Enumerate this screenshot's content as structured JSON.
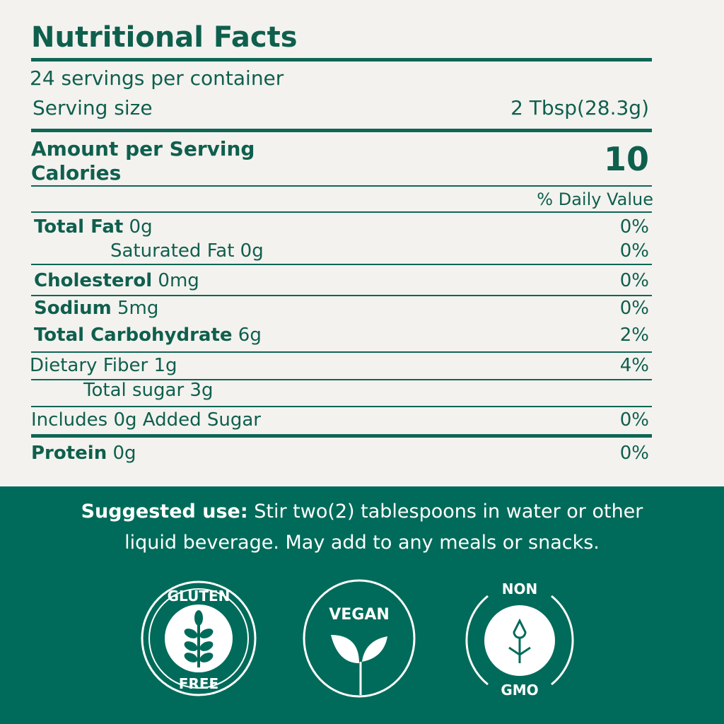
{
  "title": "Nutritional Facts",
  "servings": "24 servings per container",
  "serving_size_label": "Serving size",
  "serving_size_value": "2 Tbsp(28.3g)",
  "amount_per_serving": "Amount per Serving",
  "calories_label": "Calories",
  "calories_value": "10",
  "dv_header": "% Daily Value",
  "rows": [
    {
      "bold": "Total Fat",
      "rest": " 0g",
      "dv": "0%"
    },
    {
      "bold": "",
      "rest": "Saturated Fat 0g",
      "dv": "0%"
    },
    {
      "bold": "Cholesterol",
      "rest": " 0mg",
      "dv": "0%"
    },
    {
      "bold": "Sodium",
      "rest": " 5mg",
      "dv": "0%"
    },
    {
      "bold": "Total Carbohydrate",
      "rest": " 6g",
      "dv": "2%"
    },
    {
      "bold": "",
      "rest": "Dietary Fiber 1g",
      "dv": "4%"
    },
    {
      "bold": "",
      "rest": "Total sugar 3g",
      "dv": ""
    },
    {
      "bold": "",
      "rest": "Includes 0g Added Sugar",
      "dv": "0%"
    },
    {
      "bold": "Protein",
      "rest": " 0g",
      "dv": "0%"
    }
  ],
  "suggested": {
    "label": "Suggested use:",
    "text": " Stir two(2) tablespoons in water or other",
    "line2": "liquid beverage. May add to any meals or snacks."
  },
  "badges": {
    "gluten_top": "GLUTEN",
    "gluten_bottom": "FREE",
    "vegan": "VEGAN",
    "gmo_top": "NON",
    "gmo_bottom": "GMO"
  },
  "colors": {
    "green": "#006b5a",
    "background": "#f3f2ef",
    "text": "#0f5f4d"
  }
}
